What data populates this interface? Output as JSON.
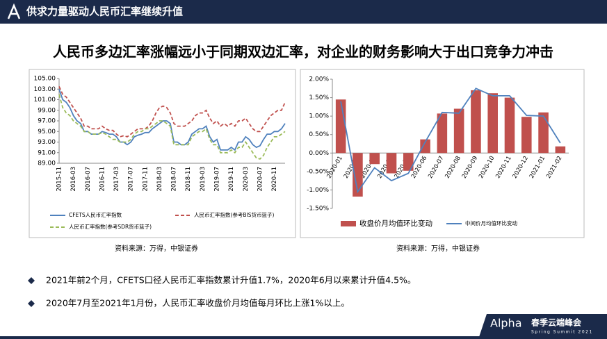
{
  "header": {
    "title": "供求力量驱动人民币汇率继续升值"
  },
  "headline": "人民币多边汇率涨幅远小于同期双边汇率，对企业的财务影响大于出口竞争力冲击",
  "chart_data": [
    {
      "type": "line",
      "source": "资料来源：万得，中银证券",
      "categories": [
        "2015-11",
        null,
        null,
        null,
        "2016-03",
        null,
        null,
        null,
        "2016-07",
        null,
        null,
        null,
        "2016-11",
        null,
        null,
        null,
        "2017-03",
        null,
        null,
        null,
        "2017-07",
        null,
        null,
        null,
        "2017-11",
        null,
        null,
        null,
        "2018-03",
        null,
        null,
        null,
        "2018-07",
        null,
        null,
        null,
        "2018-11",
        null,
        null,
        null,
        "2019-03",
        null,
        null,
        null,
        "2019-07",
        null,
        null,
        null,
        "2019-11",
        null,
        null,
        null,
        "2020-03",
        null,
        null,
        null,
        "2020-07",
        null,
        null,
        null,
        "2020-11",
        null,
        null,
        null
      ],
      "ylim": [
        89,
        105
      ],
      "yticks": [
        {
          "value": 89,
          "label": "89.00"
        },
        {
          "value": 91,
          "label": "91.00"
        },
        {
          "value": 93,
          "label": "93.00"
        },
        {
          "value": 95,
          "label": "95.00"
        },
        {
          "value": 97,
          "label": "97.00"
        },
        {
          "value": 99,
          "label": "99.00"
        },
        {
          "value": 101,
          "label": "101.00"
        },
        {
          "value": 103,
          "label": "103.00"
        },
        {
          "value": 105,
          "label": "105.00"
        }
      ],
      "grid": false,
      "series": [
        {
          "name": "CFETS人民币汇率指数",
          "color": "#4f81bd",
          "style": "solid",
          "values": [
            103.0,
            101,
            100.5,
            99.5,
            98,
            97,
            96.5,
            95,
            95,
            94.5,
            94.5,
            94.5,
            95,
            94.8,
            94.5,
            94.5,
            94,
            93,
            93,
            92.5,
            93,
            94,
            94.3,
            94.5,
            94.8,
            94.8,
            95.5,
            96,
            96.5,
            97,
            97,
            96.5,
            93,
            93,
            92.5,
            92.5,
            93,
            94.5,
            95,
            95.5,
            95.5,
            96,
            94,
            93,
            93.5,
            91.5,
            91.5,
            91.5,
            92,
            91.5,
            93,
            93,
            94,
            93.5,
            92.5,
            92,
            92.3,
            93.5,
            94.5,
            94.5,
            95,
            95,
            95.5,
            96.5
          ]
        },
        {
          "name": "人民币汇率指数(参考BIS货币篮子)",
          "color": "#c0504d",
          "style": "dashed",
          "values": [
            103.5,
            102,
            101.5,
            100.5,
            99.5,
            98.5,
            97.5,
            96,
            96,
            95.5,
            95.5,
            95.5,
            96,
            95.5,
            95.2,
            95.2,
            94.5,
            94,
            94.2,
            94,
            94.5,
            95,
            95.5,
            95.5,
            95.5,
            96,
            97,
            98.5,
            99.5,
            99.8,
            99.5,
            98.5,
            96.5,
            96,
            96,
            96,
            96.5,
            97,
            98,
            98.5,
            98.5,
            99,
            97.5,
            96.5,
            97,
            96,
            96.5,
            96,
            96.5,
            96,
            97,
            97,
            97.5,
            96.5,
            95.5,
            95,
            95,
            96,
            97,
            98,
            98.5,
            99,
            99,
            100.5
          ]
        },
        {
          "name": "人民币汇率指数(参考SDR货币篮子)",
          "color": "#9bbb59",
          "style": "dashed",
          "values": [
            102,
            99.5,
            98.5,
            98,
            97,
            96.5,
            96,
            95,
            95,
            94.5,
            94.5,
            94.5,
            94.8,
            94.5,
            94,
            93.5,
            93.5,
            93,
            93,
            93,
            93.5,
            94.5,
            95,
            95,
            95.5,
            95.5,
            96,
            96.5,
            97,
            97,
            96.5,
            96,
            92.5,
            92.5,
            92.5,
            92.5,
            92.5,
            94,
            94.5,
            95,
            95,
            95.5,
            93.5,
            92.5,
            92.5,
            91,
            91,
            91,
            91.5,
            91,
            92,
            92,
            93,
            92,
            91,
            90,
            89.8,
            90.5,
            92,
            93,
            94,
            94,
            94.5,
            95
          ]
        }
      ]
    },
    {
      "type": "bar",
      "source": "资料来源：万得，中银证券",
      "categories": [
        "2020-01",
        "2020-02",
        "2020-03",
        "2020-04",
        "2020-05",
        "2020-06",
        "2020-07",
        "2020-08",
        "2020-09",
        "2020-10",
        "2020-11",
        "2020-12",
        "2021-01",
        "2021-02"
      ],
      "ylim": [
        -1.5,
        2.0
      ],
      "yticks": [
        {
          "value": -1.5,
          "label": "-1.50%"
        },
        {
          "value": -1.0,
          "label": "-1.00%"
        },
        {
          "value": -0.5,
          "label": "-0.50%"
        },
        {
          "value": 0,
          "label": "0.00%"
        },
        {
          "value": 0.5,
          "label": "0.50%"
        },
        {
          "value": 1.0,
          "label": "1.00%"
        },
        {
          "value": 1.5,
          "label": "1.50%"
        },
        {
          "value": 2.0,
          "label": "2.00%"
        }
      ],
      "grid": false,
      "series": [
        {
          "name": "收盘价月均值环比变动",
          "color": "#c0504d",
          "type": "bar",
          "values": [
            1.45,
            -1.18,
            -0.3,
            -0.55,
            -0.48,
            0.37,
            1.07,
            1.2,
            1.7,
            1.62,
            1.5,
            0.98,
            1.1,
            0.18
          ]
        },
        {
          "name": "中间价月均值环比变动",
          "color": "#4f81bd",
          "type": "line",
          "values": [
            1.4,
            -1.05,
            -0.4,
            -0.75,
            -0.55,
            0.3,
            1.1,
            1.08,
            1.75,
            1.55,
            1.55,
            1.02,
            1.0,
            0.27
          ]
        }
      ]
    }
  ],
  "bullets": [
    "2021年前2个月，CFETS口径人民币汇率指数累计升值1.7%，2020年6月以来累计升值4.5%。",
    "2020年7月至2021年1月份，人民币汇率收盘价月均值每月环比上涨1%以上。"
  ],
  "footer": {
    "brand": "Alpha",
    "event": "春季云端峰会",
    "subtitle": "Spring Summit 2021"
  }
}
